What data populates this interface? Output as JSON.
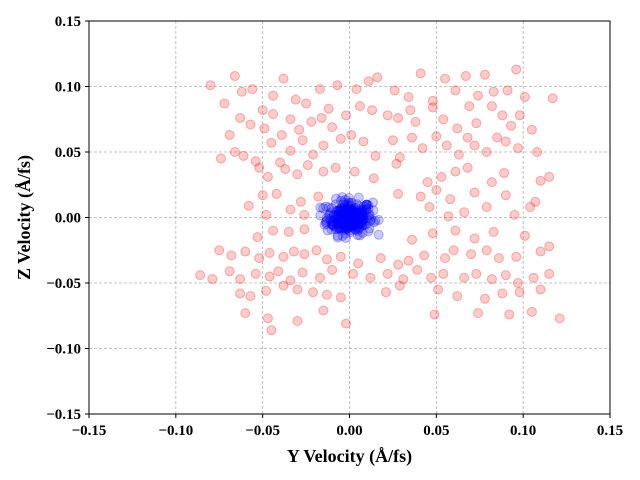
{
  "chart_data": {
    "type": "scatter",
    "title": "",
    "xlabel": "Y Velocity (Å/fs)",
    "ylabel": "Z Velocity (Å/fs)",
    "xlim": [
      -0.15,
      0.15
    ],
    "ylim": [
      -0.15,
      0.15
    ],
    "xticks": [
      "−0.15",
      "−0.10",
      "−0.05",
      "0.00",
      "0.05",
      "0.10",
      "0.15"
    ],
    "yticks": [
      "−0.15",
      "−0.10",
      "−0.05",
      "0.00",
      "0.05",
      "0.10",
      "0.15"
    ],
    "grid": true,
    "grid_style": "dashed",
    "colors": {
      "series_a": "#ff0000",
      "series_b": "#0000ff",
      "grid": "#b0b0b0"
    },
    "series": [
      {
        "color": "#ff0000",
        "alpha": 0.2,
        "points": [
          [
            -0.08,
            0.101
          ],
          [
            -0.072,
            0.087
          ],
          [
            -0.066,
            0.108
          ],
          [
            -0.062,
            0.096
          ],
          [
            -0.056,
            0.098
          ],
          [
            -0.05,
            0.082
          ],
          [
            -0.044,
            0.093
          ],
          [
            -0.038,
            0.106
          ],
          [
            -0.031,
            0.09
          ],
          [
            -0.025,
            0.087
          ],
          [
            -0.017,
            0.098
          ],
          [
            -0.012,
            0.083
          ],
          [
            -0.007,
            0.101
          ],
          [
            0.004,
            0.098
          ],
          [
            0.011,
            0.104
          ],
          [
            0.016,
            0.107
          ],
          [
            0.026,
            0.097
          ],
          [
            0.034,
            0.092
          ],
          [
            0.041,
            0.11
          ],
          [
            0.048,
            0.089
          ],
          [
            0.055,
            0.106
          ],
          [
            0.061,
            0.097
          ],
          [
            0.067,
            0.108
          ],
          [
            0.074,
            0.093
          ],
          [
            0.078,
            0.109
          ],
          [
            0.083,
            0.096
          ],
          [
            0.091,
            0.097
          ],
          [
            0.096,
            0.113
          ],
          [
            0.101,
            0.092
          ],
          [
            0.117,
            0.091
          ],
          [
            -0.069,
            0.063
          ],
          [
            -0.063,
            0.076
          ],
          [
            -0.057,
            0.071
          ],
          [
            -0.049,
            0.068
          ],
          [
            -0.044,
            0.079
          ],
          [
            -0.039,
            0.063
          ],
          [
            -0.034,
            0.075
          ],
          [
            -0.029,
            0.067
          ],
          [
            -0.022,
            0.073
          ],
          [
            -0.016,
            0.076
          ],
          [
            -0.01,
            0.069
          ],
          [
            -0.002,
            0.078
          ],
          [
            0.006,
            0.085
          ],
          [
            0.013,
            0.082
          ],
          [
            0.022,
            0.078
          ],
          [
            0.028,
            0.076
          ],
          [
            0.035,
            0.082
          ],
          [
            0.038,
            0.073
          ],
          [
            0.048,
            0.084
          ],
          [
            0.054,
            0.075
          ],
          [
            0.062,
            0.068
          ],
          [
            0.069,
            0.085
          ],
          [
            0.073,
            0.072
          ],
          [
            0.082,
            0.085
          ],
          [
            0.088,
            0.078
          ],
          [
            0.093,
            0.07
          ],
          [
            0.098,
            0.078
          ],
          [
            0.105,
            0.067
          ],
          [
            -0.074,
            0.045
          ],
          [
            -0.066,
            0.05
          ],
          [
            -0.061,
            0.047
          ],
          [
            -0.054,
            0.043
          ],
          [
            -0.045,
            0.057
          ],
          [
            -0.04,
            0.042
          ],
          [
            -0.034,
            0.051
          ],
          [
            -0.027,
            0.059
          ],
          [
            -0.021,
            0.048
          ],
          [
            -0.015,
            0.055
          ],
          [
            -0.005,
            0.06
          ],
          [
            0.001,
            0.063
          ],
          [
            0.008,
            0.058
          ],
          [
            0.015,
            0.047
          ],
          [
            0.025,
            0.059
          ],
          [
            0.029,
            0.046
          ],
          [
            0.036,
            0.061
          ],
          [
            0.042,
            0.053
          ],
          [
            0.05,
            0.062
          ],
          [
            0.056,
            0.055
          ],
          [
            0.063,
            0.048
          ],
          [
            0.068,
            0.061
          ],
          [
            0.072,
            0.055
          ],
          [
            0.079,
            0.05
          ],
          [
            0.085,
            0.061
          ],
          [
            0.09,
            0.058
          ],
          [
            0.097,
            0.053
          ],
          [
            0.108,
            0.05
          ],
          [
            -0.052,
            0.038
          ],
          [
            -0.047,
            0.031
          ],
          [
            -0.037,
            0.037
          ],
          [
            -0.03,
            0.033
          ],
          [
            -0.024,
            0.04
          ],
          [
            -0.015,
            0.035
          ],
          [
            -0.008,
            0.038
          ],
          [
            0.003,
            0.035
          ],
          [
            0.014,
            0.03
          ],
          [
            0.027,
            0.041
          ],
          [
            0.045,
            0.027
          ],
          [
            0.053,
            0.031
          ],
          [
            0.061,
            0.035
          ],
          [
            0.068,
            0.038
          ],
          [
            0.082,
            0.027
          ],
          [
            0.089,
            0.034
          ],
          [
            0.11,
            0.028
          ],
          [
            0.115,
            0.031
          ],
          [
            -0.05,
            0.017
          ],
          [
            -0.042,
            0.018
          ],
          [
            -0.028,
            0.012
          ],
          [
            -0.018,
            0.016
          ],
          [
            0.028,
            0.018
          ],
          [
            0.041,
            0.016
          ],
          [
            0.05,
            0.021
          ],
          [
            0.058,
            0.014
          ],
          [
            0.072,
            0.019
          ],
          [
            0.09,
            0.017
          ],
          [
            0.107,
            0.012
          ],
          [
            -0.058,
            0.009
          ],
          [
            -0.048,
            0.002
          ],
          [
            -0.034,
            0.006
          ],
          [
            -0.026,
            0.002
          ],
          [
            0.046,
            0.008
          ],
          [
            0.057,
            0.001
          ],
          [
            0.066,
            0.004
          ],
          [
            0.079,
            0.008
          ],
          [
            0.095,
            0.002
          ],
          [
            0.104,
            0.008
          ],
          [
            -0.053,
            -0.015
          ],
          [
            -0.044,
            -0.01
          ],
          [
            -0.035,
            -0.011
          ],
          [
            -0.026,
            -0.009
          ],
          [
            0.036,
            -0.017
          ],
          [
            0.048,
            -0.012
          ],
          [
            0.061,
            -0.01
          ],
          [
            0.072,
            -0.016
          ],
          [
            0.083,
            -0.011
          ],
          [
            0.101,
            -0.014
          ],
          [
            -0.075,
            -0.025
          ],
          [
            -0.068,
            -0.029
          ],
          [
            -0.06,
            -0.026
          ],
          [
            -0.052,
            -0.031
          ],
          [
            -0.046,
            -0.027
          ],
          [
            -0.038,
            -0.03
          ],
          [
            -0.032,
            -0.026
          ],
          [
            -0.026,
            -0.028
          ],
          [
            -0.019,
            -0.025
          ],
          [
            -0.013,
            -0.032
          ],
          [
            -0.005,
            -0.03
          ],
          [
            0.005,
            -0.035
          ],
          [
            0.018,
            -0.031
          ],
          [
            0.028,
            -0.036
          ],
          [
            0.034,
            -0.033
          ],
          [
            0.043,
            -0.029
          ],
          [
            0.055,
            -0.031
          ],
          [
            0.06,
            -0.025
          ],
          [
            0.07,
            -0.028
          ],
          [
            0.079,
            -0.025
          ],
          [
            0.086,
            -0.031
          ],
          [
            0.096,
            -0.03
          ],
          [
            0.11,
            -0.026
          ],
          [
            0.115,
            -0.022
          ],
          [
            -0.086,
            -0.044
          ],
          [
            -0.079,
            -0.047
          ],
          [
            -0.069,
            -0.041
          ],
          [
            -0.063,
            -0.047
          ],
          [
            -0.054,
            -0.043
          ],
          [
            -0.046,
            -0.045
          ],
          [
            -0.041,
            -0.041
          ],
          [
            -0.034,
            -0.048
          ],
          [
            -0.027,
            -0.042
          ],
          [
            -0.017,
            -0.046
          ],
          [
            -0.01,
            -0.04
          ],
          [
            0.002,
            -0.043
          ],
          [
            0.012,
            -0.046
          ],
          [
            0.022,
            -0.043
          ],
          [
            0.031,
            -0.047
          ],
          [
            0.039,
            -0.04
          ],
          [
            0.047,
            -0.046
          ],
          [
            0.054,
            -0.043
          ],
          [
            0.066,
            -0.046
          ],
          [
            0.073,
            -0.043
          ],
          [
            0.082,
            -0.047
          ],
          [
            0.09,
            -0.044
          ],
          [
            0.097,
            -0.05
          ],
          [
            0.106,
            -0.046
          ],
          [
            0.115,
            -0.043
          ],
          [
            -0.063,
            -0.058
          ],
          [
            -0.057,
            -0.06
          ],
          [
            -0.048,
            -0.056
          ],
          [
            -0.038,
            -0.052
          ],
          [
            -0.03,
            -0.055
          ],
          [
            -0.021,
            -0.057
          ],
          [
            -0.013,
            -0.059
          ],
          [
            -0.005,
            -0.061
          ],
          [
            0.021,
            -0.057
          ],
          [
            0.029,
            -0.052
          ],
          [
            0.051,
            -0.055
          ],
          [
            0.062,
            -0.06
          ],
          [
            0.078,
            -0.062
          ],
          [
            0.088,
            -0.058
          ],
          [
            0.098,
            -0.057
          ],
          [
            0.11,
            -0.055
          ],
          [
            -0.06,
            -0.073
          ],
          [
            -0.047,
            -0.077
          ],
          [
            -0.03,
            -0.079
          ],
          [
            -0.015,
            -0.071
          ],
          [
            -0.002,
            -0.081
          ],
          [
            0.049,
            -0.074
          ],
          [
            0.074,
            -0.073
          ],
          [
            0.092,
            -0.074
          ],
          [
            0.105,
            -0.072
          ],
          [
            0.121,
            -0.077
          ],
          [
            -0.045,
            -0.086
          ]
        ]
      },
      {
        "color": "#0000ff",
        "alpha": 0.2,
        "center": [
          0.0,
          0.0
        ],
        "spread": 0.012,
        "count": 260
      }
    ]
  }
}
